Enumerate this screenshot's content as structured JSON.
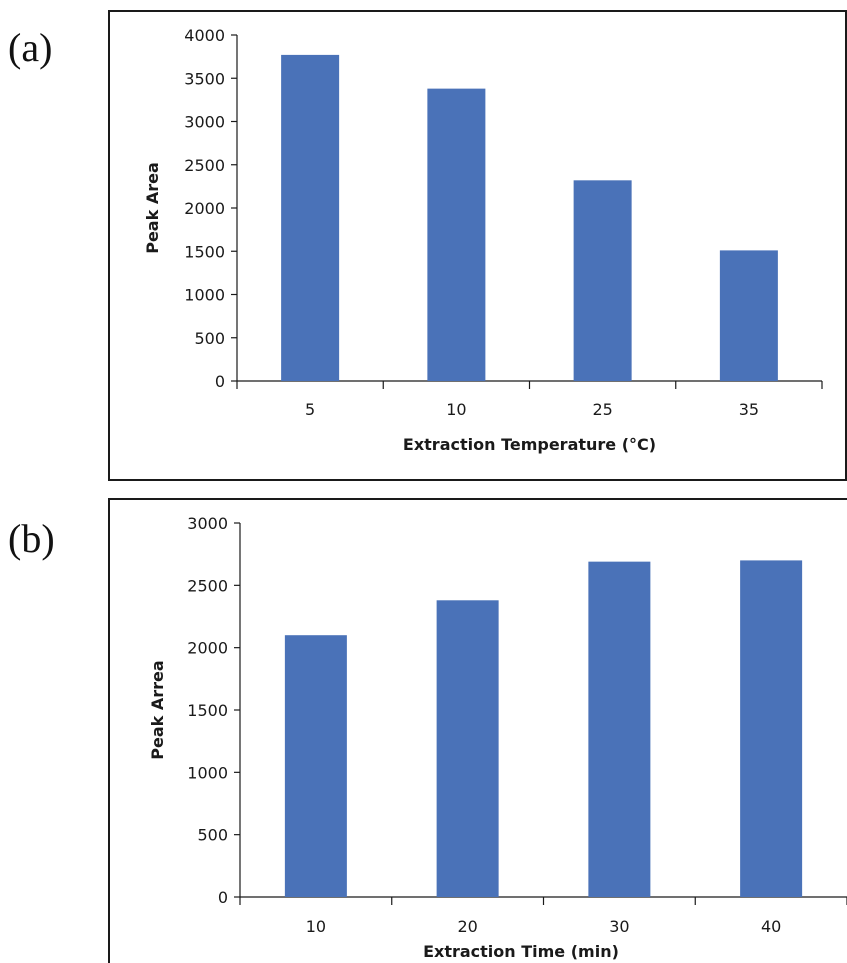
{
  "panels": [
    {
      "label": "(a)"
    },
    {
      "label": "(b)"
    }
  ],
  "chart_data": [
    {
      "type": "bar",
      "categories": [
        "5",
        "10",
        "25",
        "35"
      ],
      "values": [
        3770,
        3380,
        2320,
        1510
      ],
      "xlabel": "Extraction Temperature (°C)",
      "ylabel": "Peak Area",
      "ylim": [
        0,
        4000
      ],
      "yticks": [
        0,
        500,
        1000,
        1500,
        2000,
        2500,
        3000,
        3500,
        4000
      ],
      "grid": false,
      "bar_color": "#4a72b8"
    },
    {
      "type": "bar",
      "categories": [
        "10",
        "20",
        "30",
        "40"
      ],
      "values": [
        2100,
        2380,
        2690,
        2700
      ],
      "xlabel": "Extraction Time (min)",
      "ylabel": "Peak Arrea",
      "ylim": [
        0,
        3000
      ],
      "yticks": [
        0,
        500,
        1000,
        1500,
        2000,
        2500,
        3000
      ],
      "grid": false,
      "bar_color": "#4a72b8"
    }
  ]
}
